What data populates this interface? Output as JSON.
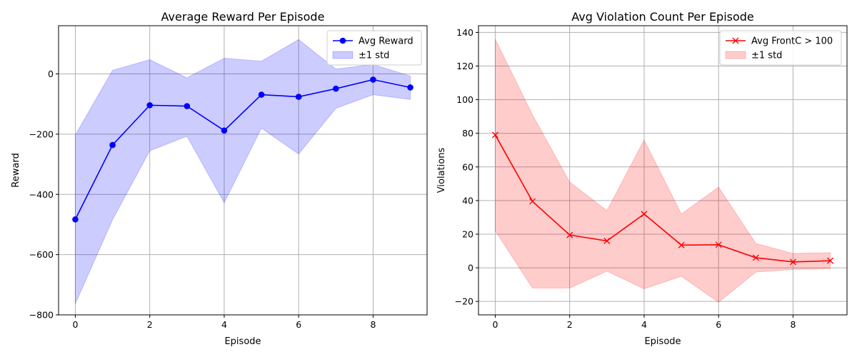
{
  "chart_data": [
    {
      "type": "line",
      "title": "Average Reward Per Episode",
      "xlabel": "Episode",
      "ylabel": "Reward",
      "xlim": [
        -0.45,
        9.45
      ],
      "ylim": [
        -800,
        160
      ],
      "xticks": [
        0,
        2,
        4,
        6,
        8
      ],
      "yticks": [
        -800,
        -600,
        -400,
        -200,
        0
      ],
      "grid": true,
      "legend_position": "top-right",
      "x": [
        0,
        1,
        2,
        3,
        4,
        5,
        6,
        7,
        8,
        9
      ],
      "series": [
        {
          "name": "Avg Reward",
          "marker": "circle",
          "color": "#0000ff",
          "values": [
            -483,
            -236,
            -104,
            -107,
            -188,
            -69,
            -76,
            -49,
            -19,
            -45
          ]
        }
      ],
      "band": {
        "name": "±1 std",
        "color": "#0000ff",
        "upper": [
          -203,
          12,
          47,
          -13,
          52,
          42,
          114,
          16,
          31,
          -7
        ],
        "lower": [
          -763,
          -484,
          -255,
          -207,
          -428,
          -180,
          -266,
          -114,
          -69,
          -85
        ]
      }
    },
    {
      "type": "line",
      "title": "Avg Violation Count Per Episode",
      "xlabel": "Episode",
      "ylabel": "Violations",
      "xlim": [
        -0.45,
        9.45
      ],
      "ylim": [
        -28,
        144
      ],
      "xticks": [
        0,
        2,
        4,
        6,
        8
      ],
      "yticks": [
        -20,
        0,
        20,
        40,
        60,
        80,
        100,
        120,
        140
      ],
      "grid": true,
      "legend_position": "top-right",
      "x": [
        0,
        1,
        2,
        3,
        4,
        5,
        6,
        7,
        8,
        9
      ],
      "series": [
        {
          "name": "Avg FrontC > 100",
          "marker": "x",
          "color": "#ff0000",
          "values": [
            79,
            39.5,
            19.5,
            16,
            32,
            13.5,
            13.7,
            6,
            3.5,
            4.2
          ]
        }
      ],
      "band": {
        "name": "±1 std",
        "color": "#ff0000",
        "upper": [
          136,
          91,
          51,
          34,
          76,
          32,
          48,
          14.5,
          8.5,
          9
        ],
        "lower": [
          22,
          -12,
          -12,
          -2,
          -12.5,
          -5,
          -20.5,
          -2.5,
          -1,
          -0.5
        ]
      }
    }
  ]
}
